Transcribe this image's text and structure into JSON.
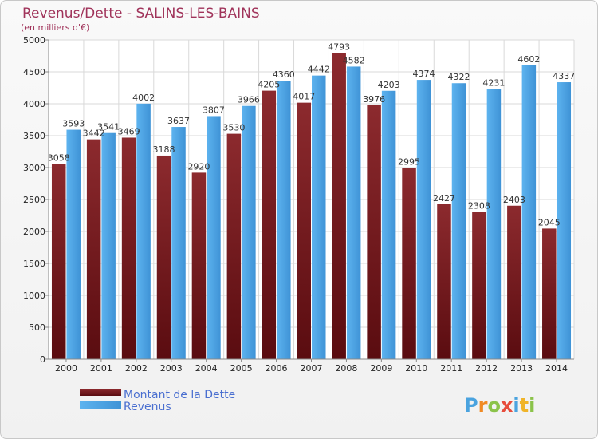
{
  "chart_data": {
    "type": "bar",
    "title": "Revenus/Dette - SALINS-LES-BAINS",
    "subtitle": "(en milliers d'€)",
    "categories": [
      "2000",
      "2001",
      "2002",
      "2003",
      "2004",
      "2005",
      "2006",
      "2007",
      "2008",
      "2009",
      "2010",
      "2011",
      "2012",
      "2013",
      "2014"
    ],
    "series": [
      {
        "name": "Montant de la Dette",
        "color": "#7a1e22",
        "values": [
          3058,
          3442,
          3469,
          3188,
          2920,
          3530,
          4205,
          4017,
          4793,
          3976,
          2995,
          2427,
          2308,
          2403,
          2045
        ],
        "labels": [
          "3058",
          "3442",
          "3469",
          "3188",
          "2920",
          "3530",
          "4205",
          "4017",
          "4793",
          "3976",
          "2995",
          "2427",
          "2308",
          "2403",
          "2045"
        ]
      },
      {
        "name": "Revenus",
        "color": "#4fa3e3",
        "values": [
          3593,
          3541,
          4002,
          3637,
          3807,
          3966,
          4360,
          4442,
          4582,
          4203,
          4374,
          4322,
          4231,
          4602,
          4337
        ],
        "labels": [
          "3593",
          "3541",
          "4002",
          "3637",
          "3807",
          "3966",
          "4360",
          "4442",
          "4582",
          "4203",
          "4374",
          "4322",
          "4231",
          "4602",
          "4337"
        ]
      }
    ],
    "yticks": [
      0,
      500,
      1000,
      1500,
      2000,
      2500,
      3000,
      3500,
      4000,
      4500,
      5000
    ],
    "ylim": [
      0,
      5000
    ],
    "grid": true,
    "legend_position": "bottom-left"
  },
  "logo": {
    "text": "Proxiti"
  }
}
